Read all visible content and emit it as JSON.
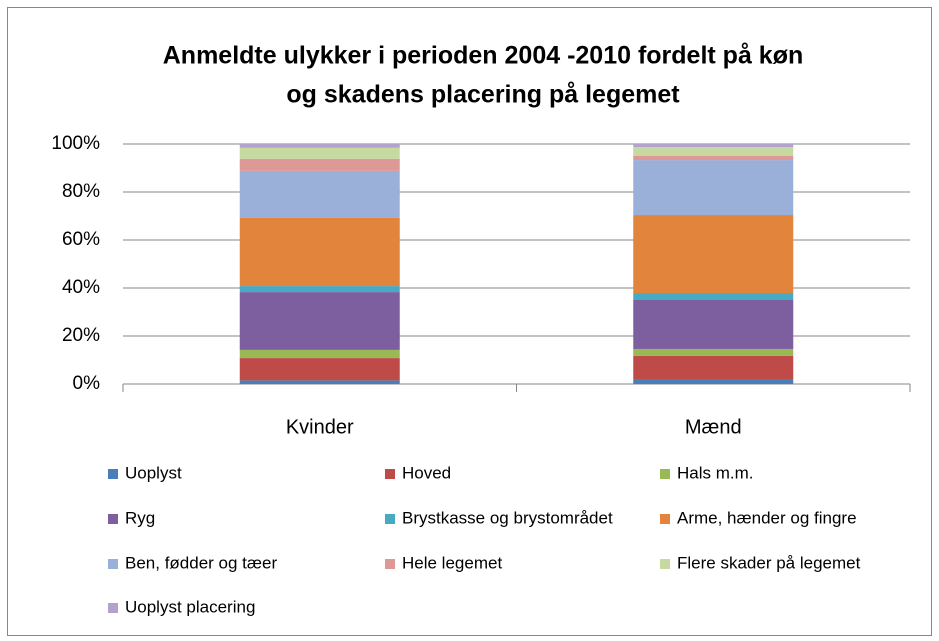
{
  "chart_data": {
    "type": "stacked_bar_percent",
    "title": [
      "Anmeldte ulykker i perioden 2004 -2010 fordelt på køn",
      "og skadens placering på legemet"
    ],
    "categories": [
      "Kvinder",
      "Mænd"
    ],
    "ylim": [
      0,
      100
    ],
    "yticks": [
      {
        "value": 0,
        "label": "0%"
      },
      {
        "value": 20,
        "label": "20%"
      },
      {
        "value": 40,
        "label": "40%"
      },
      {
        "value": 60,
        "label": "60%"
      },
      {
        "value": 80,
        "label": "80%"
      },
      {
        "value": 100,
        "label": "100%"
      }
    ],
    "grid": true,
    "legend": "bottom",
    "series": [
      {
        "name": "Uoplyst",
        "color": "#4A7EBB",
        "values": [
          1.5,
          1.7
        ]
      },
      {
        "name": "Hoved",
        "color": "#BE4B48",
        "values": [
          9.3,
          10.0
        ]
      },
      {
        "name": "Hals m.m.",
        "color": "#98B954",
        "values": [
          3.4,
          2.9
        ]
      },
      {
        "name": "Ryg",
        "color": "#7D5FA0",
        "values": [
          24.1,
          20.4
        ]
      },
      {
        "name": "Brystkasse og brystområdet",
        "color": "#46AAC5",
        "values": [
          2.5,
          2.9
        ]
      },
      {
        "name": "Arme, hænder og fingre",
        "color": "#E2843C",
        "values": [
          28.4,
          32.5
        ]
      },
      {
        "name": "Ben, fødder og tæer",
        "color": "#9BB0D8",
        "values": [
          19.6,
          22.9
        ]
      },
      {
        "name": "Hele legemet",
        "color": "#DE9896",
        "values": [
          5.0,
          1.7
        ]
      },
      {
        "name": "Flere skader på legemet",
        "color": "#C5D9A0",
        "values": [
          4.6,
          3.7
        ]
      },
      {
        "name": "Uoplyst placering",
        "color": "#B3A3CC",
        "values": [
          1.6,
          1.3
        ]
      }
    ]
  }
}
